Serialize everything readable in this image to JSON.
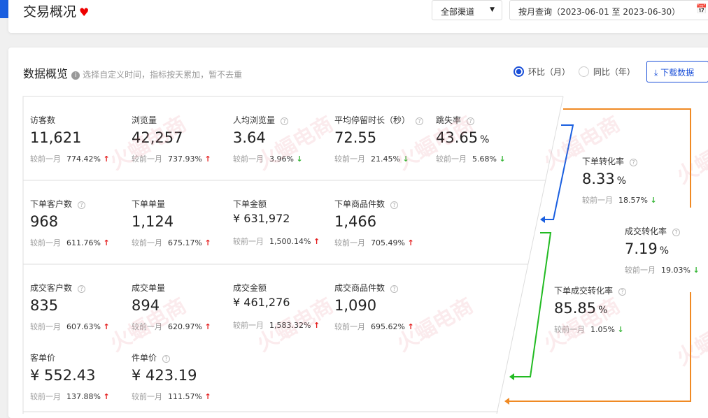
{
  "header": {
    "title": "交易概况",
    "channel_select": "全部渠道",
    "date_range": "按月查询（2023-06-01 至 2023-06-30）"
  },
  "overview": {
    "title": "数据概览",
    "hint": "选择自定义时间，指标按天累加，暂不去重",
    "radio_mom": "环比（月）",
    "radio_yoy": "同比（年）",
    "radio_selected": "mom",
    "download": "下载数据"
  },
  "compare_label": "较前一月",
  "watermark": "火蝠电商 HOTFOR E-COMMERCE",
  "metrics": [
    {
      "label": "访客数",
      "value": "11,621",
      "change": "774.42%",
      "trend": "up"
    },
    {
      "label": "浏览量",
      "value": "42,257",
      "change": "737.93%",
      "trend": "up"
    },
    {
      "label": "人均浏览量",
      "value": "3.64",
      "change": "3.96%",
      "trend": "down",
      "help": true
    },
    {
      "label": "平均停留时长（秒）",
      "value": "72.55",
      "change": "21.45%",
      "trend": "down",
      "help": true
    },
    {
      "label": "跳失率",
      "value": "43.65",
      "unit": "%",
      "change": "5.68%",
      "trend": "down",
      "help": true
    },
    {
      "label": "下单客户数",
      "value": "968",
      "change": "611.76%",
      "trend": "up",
      "help": true
    },
    {
      "label": "下单单量",
      "value": "1,124",
      "change": "675.17%",
      "trend": "up"
    },
    {
      "label": "下单金额",
      "value": "¥ 631,972",
      "change": "1,500.14%",
      "trend": "up"
    },
    {
      "label": "下单商品件数",
      "value": "1,466",
      "change": "705.49%",
      "trend": "up",
      "help": true
    },
    {
      "label": "成交客户数",
      "value": "835",
      "change": "607.63%",
      "trend": "up",
      "help": true
    },
    {
      "label": "成交单量",
      "value": "894",
      "change": "620.97%",
      "trend": "up"
    },
    {
      "label": "成交金额",
      "value": "¥ 461,276",
      "change": "1,583.32%",
      "trend": "up"
    },
    {
      "label": "成交商品件数",
      "value": "1,090",
      "change": "695.62%",
      "trend": "up",
      "help": true
    },
    {
      "label": "客单价",
      "value": "¥ 552.43",
      "change": "137.88%",
      "trend": "up"
    },
    {
      "label": "件单价",
      "value": "¥ 423.19",
      "change": "111.57%",
      "trend": "up",
      "help": true
    }
  ],
  "funnel": [
    {
      "label": "下单转化率",
      "value": "8.33",
      "unit": "%",
      "change": "18.57%",
      "trend": "down",
      "help": true
    },
    {
      "label": "成交转化率",
      "value": "7.19",
      "unit": "%",
      "change": "19.03%",
      "trend": "down",
      "help": true
    },
    {
      "label": "下单成交转化率",
      "value": "85.85",
      "unit": "%",
      "change": "1.05%",
      "trend": "down",
      "help": true
    }
  ],
  "colors": {
    "accent": "#1a4fd8",
    "up": "#e41c1c",
    "down": "#35b535",
    "arrow_blue": "#1a5fe0",
    "arrow_green": "#22bb22",
    "arrow_orange": "#f08a24"
  }
}
